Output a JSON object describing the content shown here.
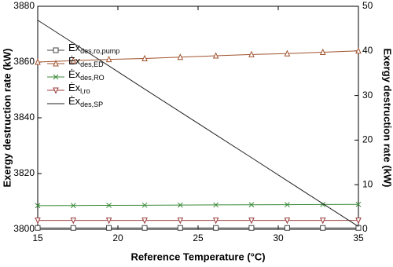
{
  "chart_data": {
    "type": "line",
    "x_label": "Reference Temperature (°C)",
    "y_label": "Exergy destruction rate (kW)",
    "y2_label": "Exergy destruction rate (kW)",
    "x": [
      15,
      17.22,
      19.44,
      21.67,
      23.89,
      26.11,
      28.33,
      30.56,
      32.78,
      35
    ],
    "xlim": [
      15,
      35
    ],
    "xticks": [
      15,
      20,
      25,
      30,
      35
    ],
    "ylim": [
      3800,
      3880
    ],
    "yticks": [
      3800,
      3820,
      3840,
      3860,
      3880
    ],
    "y2lim": [
      0,
      50
    ],
    "y2ticks": [
      0,
      10,
      20,
      30,
      40,
      50
    ],
    "legend": "upper left",
    "series": [
      {
        "name": "Ėx",
        "subscript": "des,ro,pump",
        "color": "#444444",
        "marker": "square",
        "axis": "y2",
        "values": [
          0.3,
          0.3,
          0.3,
          0.3,
          0.3,
          0.3,
          0.3,
          0.3,
          0.3,
          0.3
        ]
      },
      {
        "name": "Ėx",
        "subscript": "des,ED",
        "color": "#a0522d",
        "marker": "triangle",
        "axis": "y2",
        "values": [
          37.5,
          37.8,
          38.1,
          38.3,
          38.6,
          38.9,
          39.2,
          39.4,
          39.7,
          40
        ]
      },
      {
        "name": "Ėx",
        "subscript": "des,RO",
        "color": "#3a8a3a",
        "marker": "x",
        "axis": "y2",
        "values": [
          5.3,
          5.33,
          5.37,
          5.4,
          5.43,
          5.47,
          5.5,
          5.53,
          5.57,
          5.6
        ]
      },
      {
        "name": "Ėx",
        "subscript": "l,ro",
        "color": "#9a3b3b",
        "marker": "triangle-down",
        "axis": "y2",
        "values": [
          2.0,
          2.0,
          2.0,
          2.0,
          2.0,
          2.0,
          2.0,
          2.0,
          2.0,
          2.0
        ]
      },
      {
        "name": "Ėx",
        "subscript": "des,SP",
        "color": "#222222",
        "marker": "none",
        "axis": "y",
        "values": [
          3875,
          3866.8,
          3858.6,
          3850.3,
          3842.1,
          3833.9,
          3825.7,
          3817.4,
          3809.2,
          3801
        ]
      }
    ]
  }
}
